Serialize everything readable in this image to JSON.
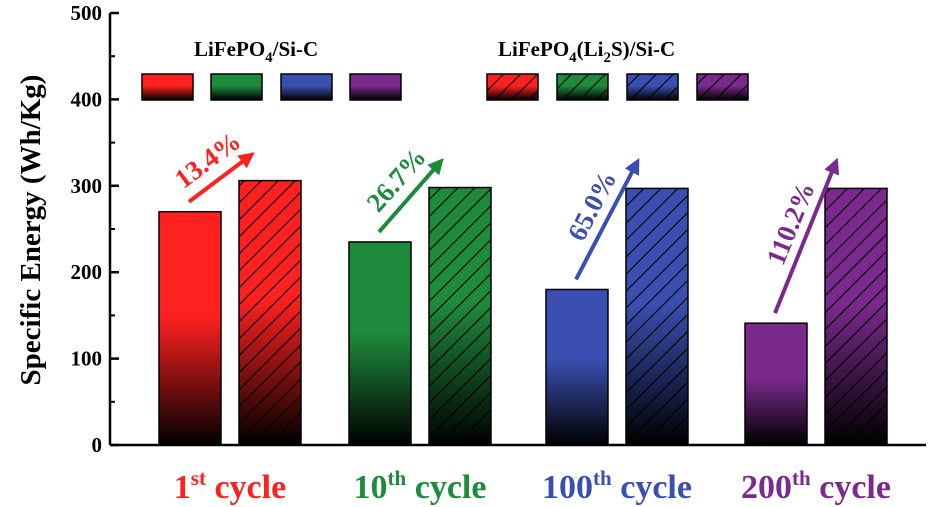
{
  "chart_data": {
    "type": "bar",
    "ylabel": "Specific Energy (Wh/Kg)",
    "ylim": [
      0,
      500
    ],
    "yticks": [
      "0",
      "100",
      "200",
      "300",
      "400",
      "500"
    ],
    "categories": [
      {
        "main": "1",
        "sup": "st",
        "rest": " cycle",
        "color": "#ff2020"
      },
      {
        "main": "10",
        "sup": "th",
        "rest": " cycle",
        "color": "#1e8a3c"
      },
      {
        "main": "100",
        "sup": "th",
        "rest": " cycle",
        "color": "#3a4fb0"
      },
      {
        "main": "200",
        "sup": "th",
        "rest": " cycle",
        "color": "#7a2a8c"
      }
    ],
    "series": [
      {
        "name": "LiFePO4/Si-C",
        "pattern": "solid",
        "values": [
          270,
          235,
          180,
          141
        ]
      },
      {
        "name": "LiFePO4(Li2S)/Si-C",
        "pattern": "hatched",
        "values": [
          306,
          298,
          297,
          297
        ]
      }
    ],
    "improvements": [
      "13.4%",
      "26.7%",
      "65.0%",
      "110.2%"
    ],
    "legend": {
      "solid_label": {
        "a": "LiFePO",
        "sub": "4",
        "b": "/Si-C"
      },
      "hatched_label": {
        "a": "LiFePO",
        "sub1": "4",
        "b": "(Li",
        "sub2": "2",
        "c": "S)/Si-C"
      }
    }
  }
}
